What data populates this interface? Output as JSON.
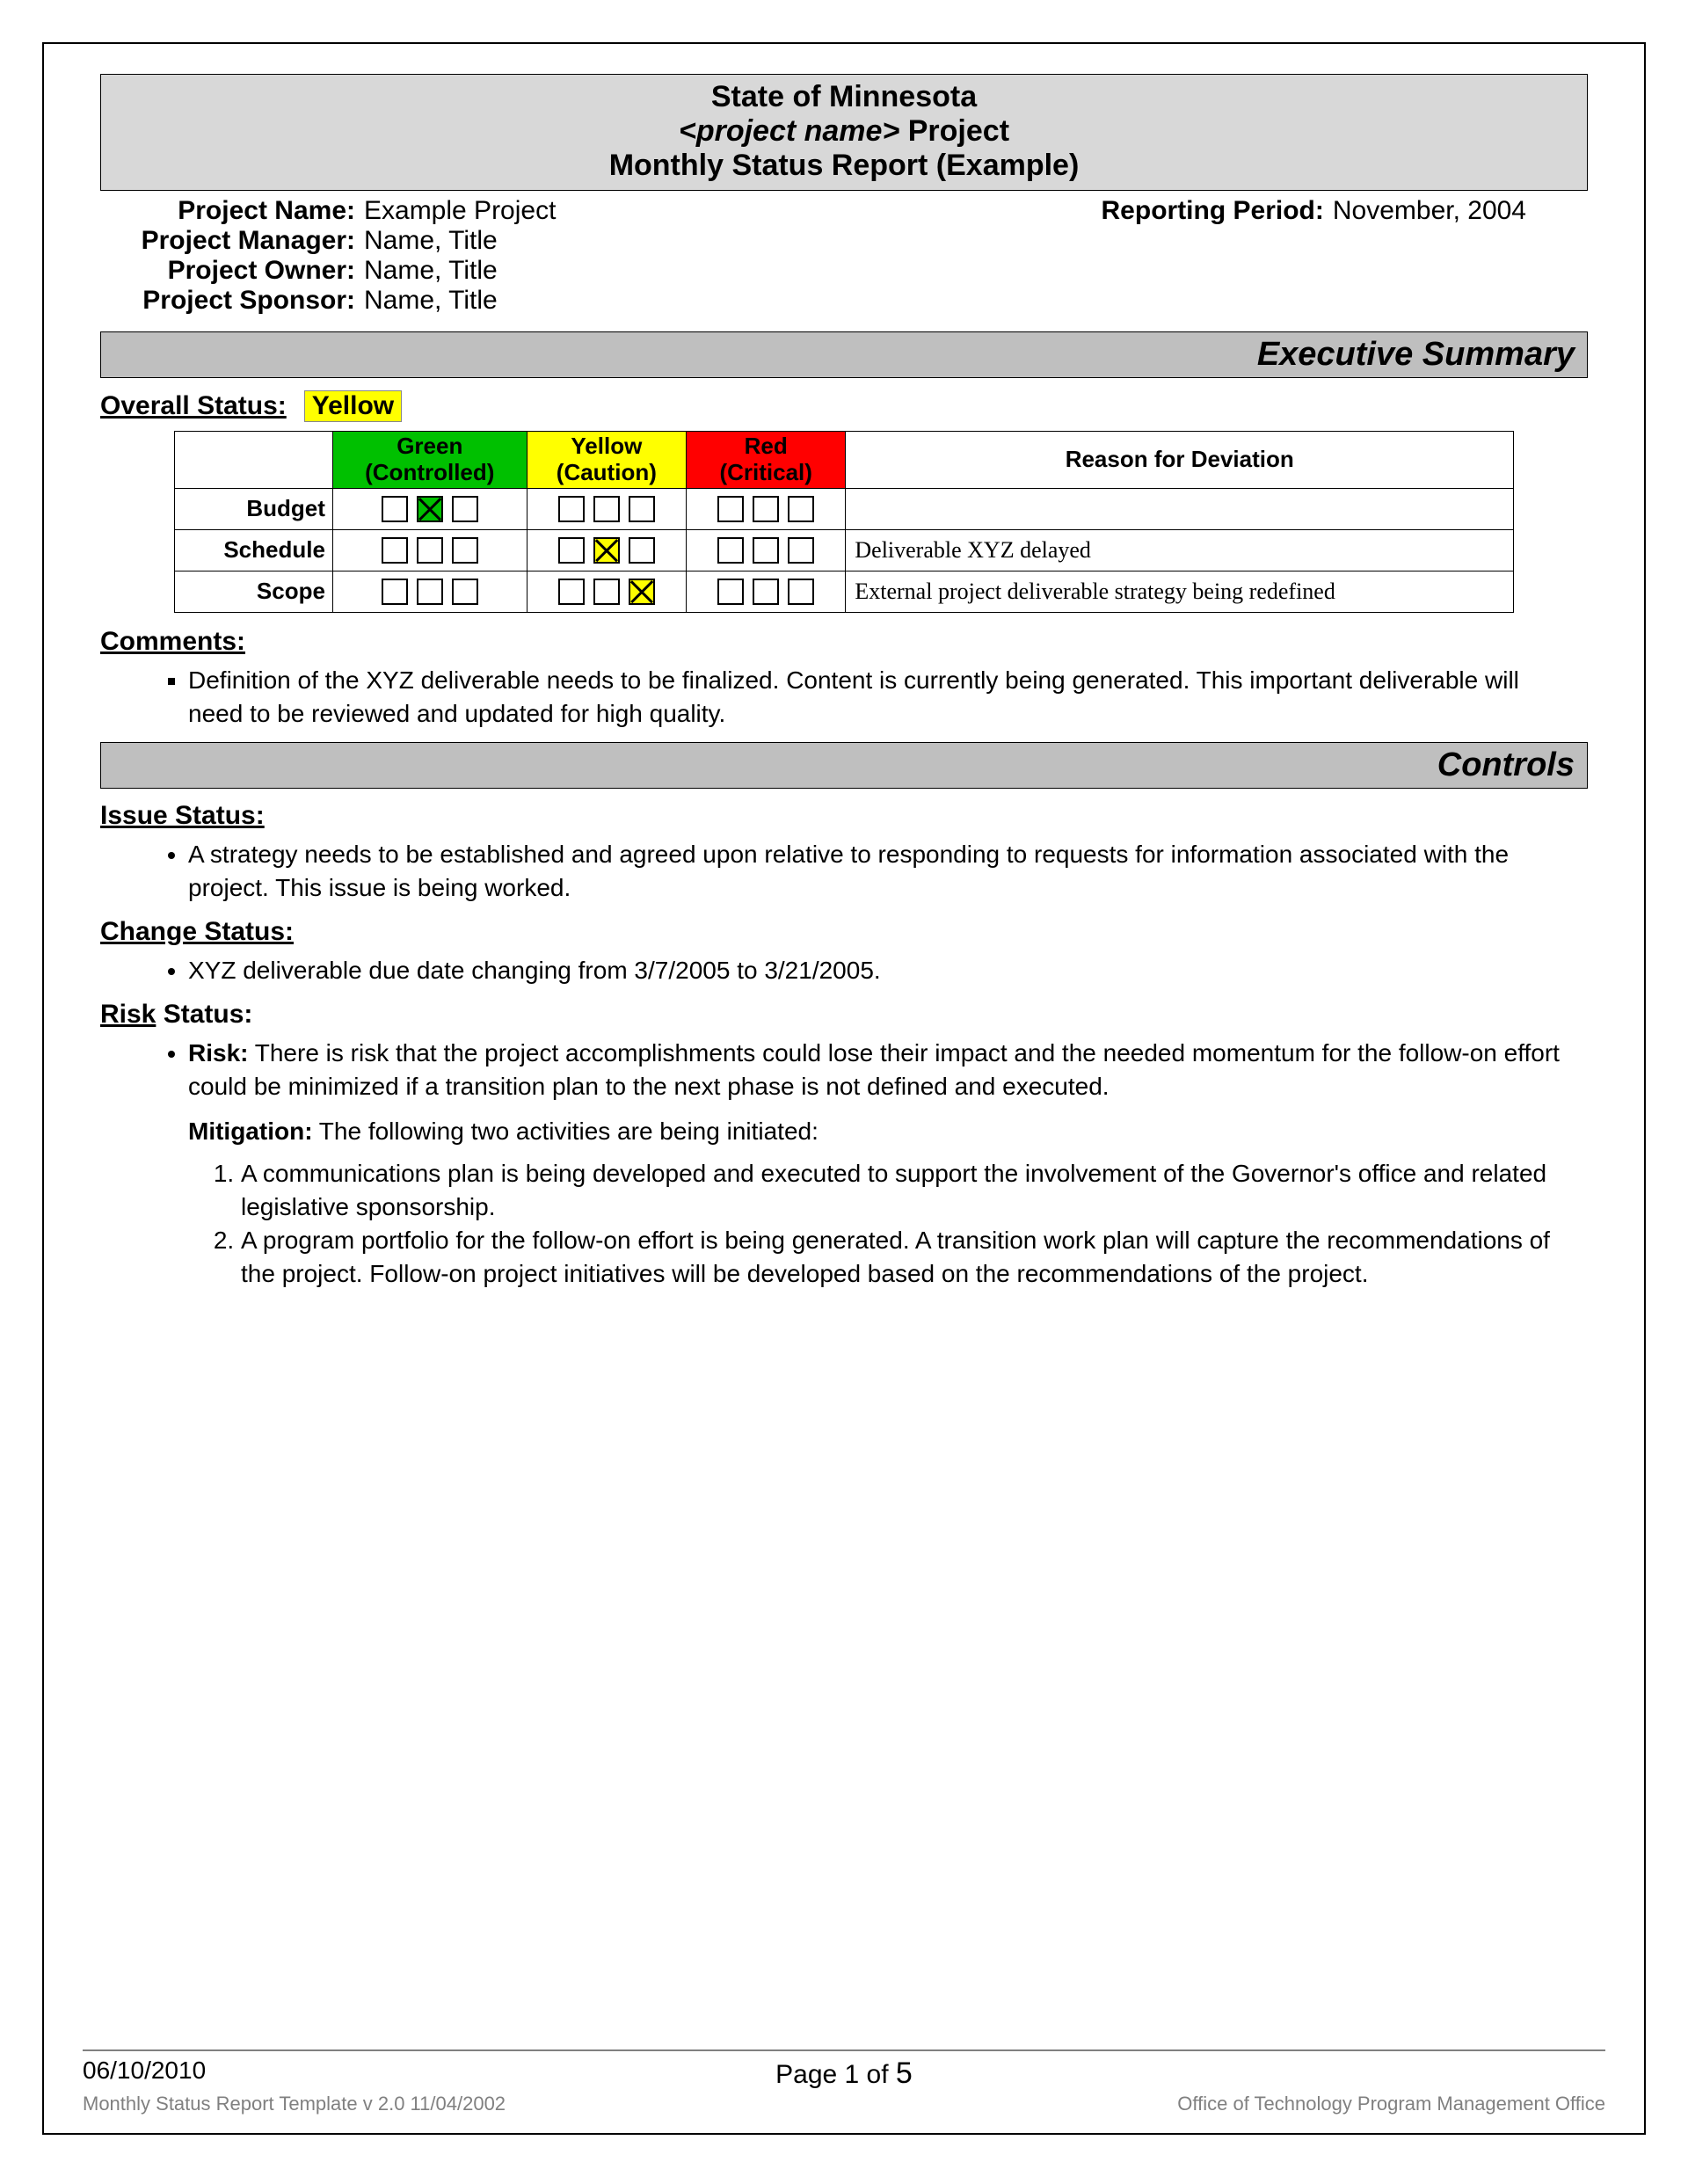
{
  "colors": {
    "page_bg": "#ffffff",
    "title_bg": "#d8d8d8",
    "section_banner_bg": "#bfbfbf",
    "border": "#000000",
    "green": "#00c000",
    "yellow": "#ffff00",
    "red": "#ff0000",
    "footer_rule": "#808080",
    "footer_muted": "#808080"
  },
  "typography": {
    "base_family": "Arial",
    "serif_family": "Times New Roman",
    "title_fontsize": 34,
    "banner_fontsize": 38,
    "body_fontsize": 28,
    "table_fontsize": 26
  },
  "title": {
    "line1": "State of Minnesota",
    "line2_italic": "<project name>",
    "line2_suffix": " Project",
    "line3": "Monthly Status Report (Example)"
  },
  "meta": {
    "project_name_label": "Project Name:",
    "project_name": "Example Project",
    "reporting_period_label": "Reporting Period:",
    "reporting_period": "November, 2004",
    "project_manager_label": "Project Manager:",
    "project_manager": "Name, Title",
    "project_owner_label": "Project Owner:",
    "project_owner": "Name, Title",
    "project_sponsor_label": "Project Sponsor:",
    "project_sponsor": "Name, Title"
  },
  "sections": {
    "executive_summary": "Executive Summary",
    "controls": "Controls"
  },
  "overall": {
    "label": "Overall Status:",
    "value": "Yellow"
  },
  "status_table": {
    "columns": {
      "green": {
        "name": "Green",
        "sub": "(Controlled)",
        "bg": "#00c000"
      },
      "yellow": {
        "name": "Yellow",
        "sub": "(Caution)",
        "bg": "#ffff00"
      },
      "red": {
        "name": "Red",
        "sub": "(Critical)",
        "bg": "#ff0000"
      },
      "reason_header": "Reason for Deviation"
    },
    "rows": [
      {
        "label": "Budget",
        "green": [
          false,
          true,
          false
        ],
        "yellow": [
          false,
          false,
          false
        ],
        "red": [
          false,
          false,
          false
        ],
        "checked_fill": "green",
        "reason": ""
      },
      {
        "label": "Schedule",
        "green": [
          false,
          false,
          false
        ],
        "yellow": [
          false,
          true,
          false
        ],
        "red": [
          false,
          false,
          false
        ],
        "checked_fill": "yellow",
        "reason": "Deliverable XYZ delayed"
      },
      {
        "label": "Scope",
        "green": [
          false,
          false,
          false
        ],
        "yellow": [
          false,
          false,
          true
        ],
        "red": [
          false,
          false,
          false
        ],
        "checked_fill": "yellow",
        "reason": "External project deliverable strategy being redefined"
      }
    ]
  },
  "comments": {
    "heading": "Comments:",
    "items": [
      "Definition of the XYZ deliverable needs to be finalized.  Content is currently being generated.  This important deliverable will need to be reviewed and updated for high quality."
    ]
  },
  "issue_status": {
    "heading": "Issue Status:",
    "items": [
      "A strategy needs to be established and agreed upon relative to responding to requests for information associated with the project.  This issue is being worked."
    ]
  },
  "change_status": {
    "heading": "Change Status:",
    "items": [
      "XYZ deliverable due date changing from 3/7/2005 to 3/21/2005."
    ]
  },
  "risk_status": {
    "heading_underlined": "Risk",
    "heading_rest": " Status:",
    "risk_label": "Risk:",
    "risk_text": " There is risk that the project accomplishments could lose their impact and the needed momentum for the follow-on effort could be minimized if a transition plan to the next phase is not defined and executed.",
    "mitigation_label": "Mitigation:",
    "mitigation_intro": "  The following two activities are being initiated:",
    "mitigation_items": [
      "A communications plan is being developed and executed to support the involvement of the Governor's office and related legislative sponsorship.",
      "A program portfolio for the follow-on effort is being generated. A transition work plan will capture the recommendations of the project. Follow-on project initiatives will be developed based on the recommendations of the project."
    ]
  },
  "footer": {
    "date": "06/10/2010",
    "page_prefix": "Page ",
    "page_current": "1",
    "page_of": " of ",
    "page_total": "5",
    "template_line": "Monthly Status Report Template  v 2.0  11/04/2002",
    "office": "Office of Technology Program Management Office"
  }
}
